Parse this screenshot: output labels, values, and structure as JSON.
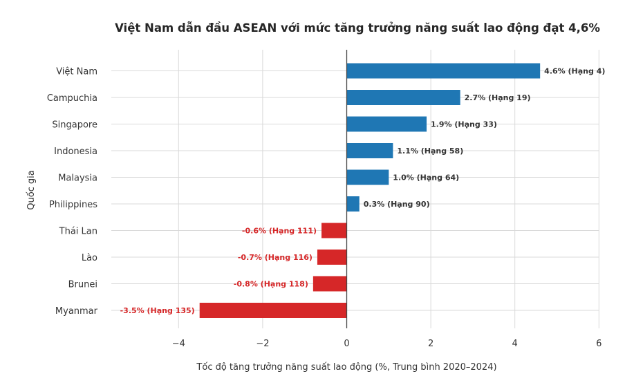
{
  "chart_data": {
    "type": "bar",
    "orientation": "horizontal",
    "title": "Việt Nam dẫn đầu ASEAN với mức tăng trưởng năng suất lao động đạt 4,6%",
    "xlabel": "Tốc độ tăng trưởng năng suất lao động (%, Trung bình 2020–2024)",
    "ylabel": "Quốc gia",
    "xlim": [
      -5.6,
      6.0
    ],
    "xticks": [
      -4,
      -2,
      0,
      2,
      4,
      6
    ],
    "xtick_labels": [
      "−4",
      "−2",
      "0",
      "2",
      "4",
      "6"
    ],
    "grid": true,
    "categories": [
      "Việt Nam",
      "Campuchia",
      "Singapore",
      "Indonesia",
      "Malaysia",
      "Philippines",
      "Thái Lan",
      "Lào",
      "Brunei",
      "Myanmar"
    ],
    "values": [
      4.6,
      2.7,
      1.9,
      1.1,
      1.0,
      0.3,
      -0.6,
      -0.7,
      -0.8,
      -3.5
    ],
    "data_labels": [
      "4.6% (Hạng 4)",
      "2.7% (Hạng 19)",
      "1.9% (Hạng 33)",
      "1.1% (Hạng 58)",
      "1.0% (Hạng 64)",
      "0.3% (Hạng 90)",
      "-0.6% (Hạng 111)",
      "-0.7% (Hạng 116)",
      "-0.8% (Hạng 118)",
      "-3.5% (Hạng 135)"
    ],
    "colors": {
      "positive": "#1f77b4",
      "negative": "#d62728",
      "grid": "#d9d9d9",
      "zero_line": "#444444",
      "text": "#333333"
    }
  }
}
